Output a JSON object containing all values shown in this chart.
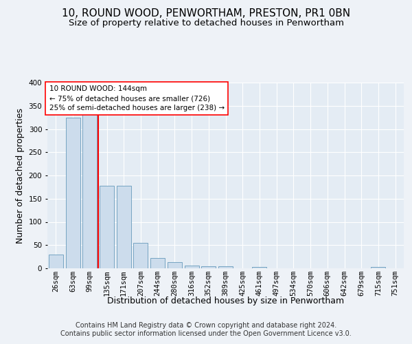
{
  "title": "10, ROUND WOOD, PENWORTHAM, PRESTON, PR1 0BN",
  "subtitle": "Size of property relative to detached houses in Penwortham",
  "xlabel": "Distribution of detached houses by size in Penwortham",
  "ylabel": "Number of detached properties",
  "categories": [
    "26sqm",
    "63sqm",
    "99sqm",
    "135sqm",
    "171sqm",
    "207sqm",
    "244sqm",
    "280sqm",
    "316sqm",
    "352sqm",
    "389sqm",
    "425sqm",
    "461sqm",
    "497sqm",
    "534sqm",
    "570sqm",
    "606sqm",
    "642sqm",
    "679sqm",
    "715sqm",
    "751sqm"
  ],
  "values": [
    30,
    325,
    335,
    178,
    178,
    55,
    22,
    14,
    6,
    5,
    5,
    0,
    3,
    0,
    0,
    0,
    0,
    0,
    0,
    3,
    0
  ],
  "bar_color": "#ccdcec",
  "bar_edge_color": "#6699bb",
  "annotation_line1": "10 ROUND WOOD: 144sqm",
  "annotation_line2": "← 75% of detached houses are smaller (726)",
  "annotation_line3": "25% of semi-detached houses are larger (238) →",
  "red_line_x": 2.5,
  "ylim": [
    0,
    400
  ],
  "yticks": [
    0,
    50,
    100,
    150,
    200,
    250,
    300,
    350,
    400
  ],
  "footer1": "Contains HM Land Registry data © Crown copyright and database right 2024.",
  "footer2": "Contains public sector information licensed under the Open Government Licence v3.0.",
  "background_color": "#eef2f7",
  "plot_background": "#e4ecf4",
  "grid_color": "#ffffff",
  "title_fontsize": 11,
  "subtitle_fontsize": 9.5,
  "axis_label_fontsize": 9,
  "tick_fontsize": 7.5,
  "footer_fontsize": 7
}
